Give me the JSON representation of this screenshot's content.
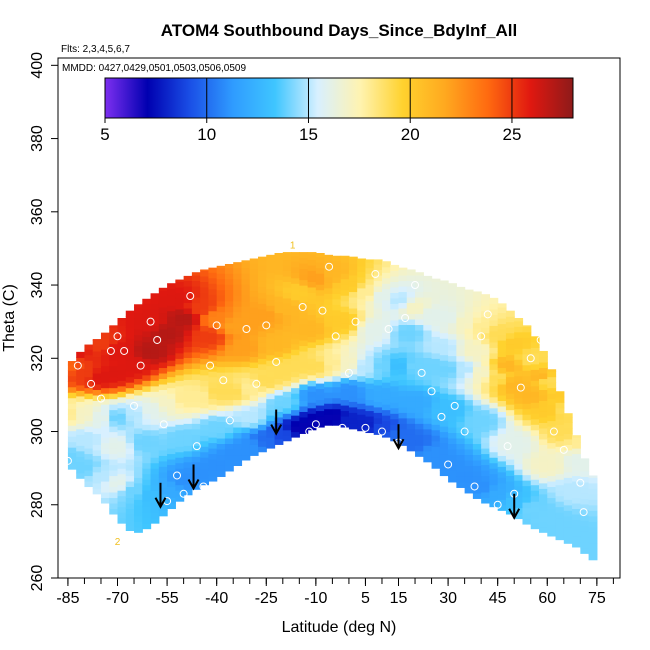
{
  "chart_data": {
    "type": "scatter",
    "title": "ATOM4 Southbound Days_Since_BdyInf_All",
    "flights_note": "Flts: 2,3,4,5,6,7",
    "dates_note": "MMDD: 0427,0429,0501,0503,0506,0509",
    "xlabel": "Latitude (deg N)",
    "ylabel": "Theta (C)",
    "xlim": [
      -88,
      82
    ],
    "ylim": [
      260,
      402
    ],
    "x_ticks": [
      -85,
      -70,
      -55,
      -40,
      -25,
      -10,
      5,
      15,
      30,
      45,
      60,
      75
    ],
    "x_tick_labels": [
      "-85",
      "-70",
      "-55",
      "-40",
      "-25",
      "-10",
      "5",
      "15",
      "30",
      "45",
      "60",
      "75"
    ],
    "x_minor_step": 5,
    "y_ticks": [
      260,
      280,
      300,
      320,
      340,
      360,
      380,
      400
    ],
    "y_tick_labels": [
      "260",
      "280",
      "300",
      "320",
      "340",
      "360",
      "380",
      "400"
    ],
    "colorbar": {
      "min": 5,
      "max": 28,
      "ticks": [
        5,
        10,
        15,
        20,
        25
      ],
      "tick_labels": [
        "5",
        "10",
        "15",
        "20",
        "25"
      ],
      "colors": [
        "#7d2ff0",
        "#0000b0",
        "#1a4fe6",
        "#2f9bff",
        "#3fc6ff",
        "#d8f0ff",
        "#fff3b0",
        "#ffd22e",
        "#ffa81f",
        "#ff6a10",
        "#e01810",
        "#8e1a1a"
      ]
    },
    "profile_top": [
      [
        -85,
        318
      ],
      [
        -80,
        323
      ],
      [
        -75,
        326
      ],
      [
        -70,
        330
      ],
      [
        -65,
        334
      ],
      [
        -60,
        337
      ],
      [
        -55,
        340
      ],
      [
        -50,
        342
      ],
      [
        -45,
        344
      ],
      [
        -40,
        345
      ],
      [
        -35,
        346
      ],
      [
        -30,
        347
      ],
      [
        -25,
        348
      ],
      [
        -20,
        349
      ],
      [
        -15,
        349
      ],
      [
        -10,
        349
      ],
      [
        -5,
        348
      ],
      [
        0,
        348
      ],
      [
        5,
        347
      ],
      [
        10,
        347
      ],
      [
        15,
        345
      ],
      [
        20,
        344
      ],
      [
        25,
        342
      ],
      [
        30,
        341
      ],
      [
        35,
        339
      ],
      [
        40,
        338
      ],
      [
        45,
        336
      ],
      [
        50,
        332
      ],
      [
        55,
        328
      ],
      [
        60,
        320
      ],
      [
        65,
        308
      ],
      [
        70,
        296
      ],
      [
        73,
        288
      ]
    ],
    "profile_bottom": [
      [
        -85,
        291
      ],
      [
        -80,
        286
      ],
      [
        -75,
        282
      ],
      [
        -70,
        276
      ],
      [
        -65,
        272
      ],
      [
        -60,
        274
      ],
      [
        -55,
        278
      ],
      [
        -50,
        282
      ],
      [
        -45,
        285
      ],
      [
        -40,
        287
      ],
      [
        -35,
        290
      ],
      [
        -30,
        293
      ],
      [
        -25,
        295
      ],
      [
        -20,
        297
      ],
      [
        -15,
        299
      ],
      [
        -10,
        301
      ],
      [
        -5,
        302
      ],
      [
        0,
        301
      ],
      [
        5,
        300
      ],
      [
        10,
        299
      ],
      [
        15,
        297
      ],
      [
        20,
        294
      ],
      [
        25,
        291
      ],
      [
        30,
        287
      ],
      [
        35,
        284
      ],
      [
        40,
        281
      ],
      [
        45,
        279
      ],
      [
        50,
        277
      ],
      [
        55,
        274
      ],
      [
        60,
        272
      ],
      [
        65,
        270
      ],
      [
        70,
        268
      ],
      [
        73,
        265
      ]
    ],
    "values": [
      [
        -85,
        318,
        24
      ],
      [
        -80,
        316,
        25
      ],
      [
        -75,
        315,
        26
      ],
      [
        -70,
        316,
        26
      ],
      [
        -65,
        318,
        26
      ],
      [
        -60,
        322,
        27
      ],
      [
        -55,
        327,
        27
      ],
      [
        -50,
        331,
        27
      ],
      [
        -45,
        334,
        25
      ],
      [
        -40,
        331,
        23
      ],
      [
        -35,
        329,
        22
      ],
      [
        -30,
        331,
        22
      ],
      [
        -25,
        332,
        22
      ],
      [
        -20,
        334,
        21
      ],
      [
        -15,
        338,
        20
      ],
      [
        -10,
        342,
        22
      ],
      [
        -5,
        343,
        21
      ],
      [
        0,
        340,
        20
      ],
      [
        5,
        338,
        18
      ],
      [
        10,
        337,
        16
      ],
      [
        15,
        336,
        15
      ],
      [
        20,
        334,
        17
      ],
      [
        25,
        332,
        16
      ],
      [
        30,
        331,
        16
      ],
      [
        35,
        330,
        17
      ],
      [
        40,
        329,
        18
      ],
      [
        45,
        327,
        19
      ],
      [
        50,
        324,
        20
      ],
      [
        55,
        320,
        19
      ],
      [
        60,
        314,
        19
      ],
      [
        65,
        306,
        19
      ],
      [
        70,
        298,
        18
      ],
      [
        -85,
        305,
        18
      ],
      [
        -80,
        305,
        17
      ],
      [
        -75,
        304,
        16
      ],
      [
        -70,
        304,
        14
      ],
      [
        -65,
        305,
        15
      ],
      [
        -60,
        306,
        16
      ],
      [
        -55,
        308,
        17
      ],
      [
        -50,
        309,
        18
      ],
      [
        -45,
        310,
        18
      ],
      [
        -40,
        311,
        19
      ],
      [
        -35,
        311,
        19
      ],
      [
        -30,
        312,
        18
      ],
      [
        -25,
        314,
        19
      ],
      [
        -20,
        316,
        19
      ],
      [
        -15,
        318,
        19
      ],
      [
        -10,
        318,
        19
      ],
      [
        -5,
        319,
        18
      ],
      [
        0,
        319,
        17
      ],
      [
        5,
        318,
        15
      ],
      [
        10,
        318,
        14
      ],
      [
        15,
        318,
        13
      ],
      [
        20,
        318,
        14
      ],
      [
        25,
        318,
        14
      ],
      [
        30,
        317,
        14
      ],
      [
        35,
        317,
        15
      ],
      [
        40,
        316,
        17
      ],
      [
        45,
        315,
        19
      ],
      [
        50,
        313,
        21
      ],
      [
        55,
        310,
        21
      ],
      [
        60,
        306,
        20
      ],
      [
        65,
        300,
        19
      ],
      [
        70,
        292,
        16
      ],
      [
        -85,
        293,
        14
      ],
      [
        -80,
        290,
        14
      ],
      [
        -75,
        288,
        15
      ],
      [
        -70,
        286,
        16
      ],
      [
        -65,
        284,
        14
      ],
      [
        -60,
        283,
        13
      ],
      [
        -55,
        284,
        12
      ],
      [
        -50,
        287,
        11
      ],
      [
        -45,
        289,
        11
      ],
      [
        -40,
        291,
        11
      ],
      [
        -35,
        294,
        11
      ],
      [
        -30,
        296,
        11
      ],
      [
        -25,
        298,
        10
      ],
      [
        -20,
        299,
        9
      ],
      [
        -15,
        301,
        7
      ],
      [
        -10,
        303,
        7
      ],
      [
        -5,
        304,
        7
      ],
      [
        0,
        303,
        8
      ],
      [
        5,
        302,
        8
      ],
      [
        10,
        301,
        9
      ],
      [
        15,
        299,
        10
      ],
      [
        20,
        297,
        10
      ],
      [
        25,
        294,
        11
      ],
      [
        30,
        291,
        11
      ],
      [
        35,
        288,
        11
      ],
      [
        40,
        285,
        11
      ],
      [
        45,
        283,
        12
      ],
      [
        50,
        281,
        13
      ],
      [
        55,
        279,
        14
      ],
      [
        60,
        276,
        14
      ],
      [
        65,
        273,
        14
      ],
      [
        70,
        270,
        14
      ],
      [
        -83,
        322,
        26
      ],
      [
        -75,
        324,
        25
      ],
      [
        -70,
        322,
        26
      ],
      [
        -60,
        330,
        26
      ],
      [
        -52,
        336,
        26
      ],
      [
        -42,
        326,
        25
      ],
      [
        -32,
        323,
        22
      ],
      [
        -22,
        324,
        21
      ],
      [
        -12,
        328,
        21
      ],
      [
        -2,
        330,
        20
      ],
      [
        8,
        328,
        16
      ],
      [
        18,
        327,
        14
      ],
      [
        28,
        323,
        15
      ],
      [
        38,
        322,
        17
      ],
      [
        48,
        318,
        21
      ],
      [
        58,
        315,
        21
      ],
      [
        66,
        310,
        20
      ],
      [
        -80,
        298,
        15
      ],
      [
        -70,
        296,
        16
      ],
      [
        -62,
        297,
        14
      ],
      [
        -50,
        298,
        14
      ],
      [
        -40,
        301,
        14
      ],
      [
        -30,
        304,
        15
      ],
      [
        -20,
        308,
        14
      ],
      [
        -10,
        310,
        11
      ],
      [
        0,
        311,
        11
      ],
      [
        10,
        310,
        12
      ],
      [
        20,
        308,
        12
      ],
      [
        30,
        306,
        13
      ],
      [
        40,
        303,
        14
      ],
      [
        50,
        297,
        16
      ],
      [
        60,
        291,
        17
      ],
      [
        68,
        284,
        15
      ]
    ],
    "obs_points": [
      [
        -85,
        292
      ],
      [
        -82,
        318
      ],
      [
        -78,
        313
      ],
      [
        -75,
        309
      ],
      [
        -72,
        322
      ],
      [
        -70,
        326
      ],
      [
        -68,
        322
      ],
      [
        -65,
        307
      ],
      [
        -63,
        318
      ],
      [
        -60,
        330
      ],
      [
        -58,
        325
      ],
      [
        -56,
        302
      ],
      [
        -55,
        281
      ],
      [
        -52,
        288
      ],
      [
        -50,
        283
      ],
      [
        -48,
        337
      ],
      [
        -46,
        296
      ],
      [
        -44,
        285
      ],
      [
        -42,
        318
      ],
      [
        -40,
        329
      ],
      [
        -38,
        314
      ],
      [
        -36,
        303
      ],
      [
        -34,
        287
      ],
      [
        -31,
        328
      ],
      [
        -28,
        313
      ],
      [
        -25,
        329
      ],
      [
        -22,
        319
      ],
      [
        -20,
        293
      ],
      [
        -18,
        296
      ],
      [
        -14,
        334
      ],
      [
        -12,
        300
      ],
      [
        -10,
        302
      ],
      [
        -8,
        333
      ],
      [
        -6,
        345
      ],
      [
        -4,
        326
      ],
      [
        -2,
        301
      ],
      [
        0,
        316
      ],
      [
        2,
        330
      ],
      [
        5,
        301
      ],
      [
        8,
        343
      ],
      [
        10,
        300
      ],
      [
        12,
        328
      ],
      [
        15,
        297
      ],
      [
        17,
        331
      ],
      [
        20,
        340
      ],
      [
        22,
        316
      ],
      [
        25,
        311
      ],
      [
        28,
        304
      ],
      [
        30,
        291
      ],
      [
        32,
        307
      ],
      [
        35,
        300
      ],
      [
        38,
        285
      ],
      [
        40,
        326
      ],
      [
        42,
        332
      ],
      [
        45,
        280
      ],
      [
        48,
        296
      ],
      [
        50,
        283
      ],
      [
        52,
        312
      ],
      [
        55,
        320
      ],
      [
        58,
        325
      ],
      [
        60,
        327
      ],
      [
        62,
        300
      ],
      [
        65,
        295
      ],
      [
        70,
        286
      ],
      [
        71,
        278
      ]
    ],
    "arrows": [
      [
        -57,
        286
      ],
      [
        -47,
        291
      ],
      [
        -22,
        306
      ],
      [
        15,
        302
      ],
      [
        50,
        283
      ]
    ],
    "flight_labels": [
      {
        "x": -17,
        "y": 350,
        "text": "1"
      },
      {
        "x": -70,
        "y": 269,
        "text": "2"
      }
    ]
  }
}
